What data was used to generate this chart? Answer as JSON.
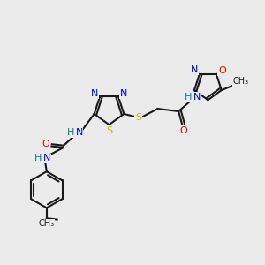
{
  "bg_color": "#ebebeb",
  "bond_color": "#1a1a1a",
  "N_color": "#0000ee",
  "S_color": "#bbbb00",
  "O_color": "#ee0000",
  "C_color": "#1a1a1a",
  "H_color": "#008888",
  "font_size": 8.0,
  "lw": 1.5,
  "xlim": [
    0,
    10
  ],
  "ylim": [
    0,
    10
  ]
}
